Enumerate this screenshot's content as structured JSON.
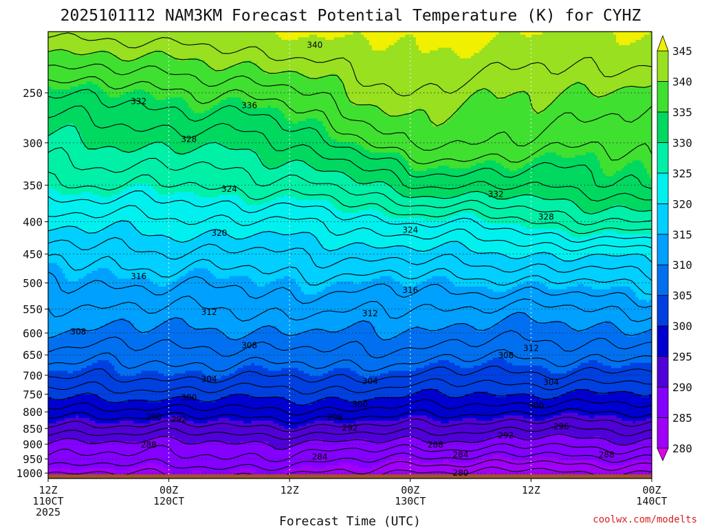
{
  "chart_data": {
    "type": "contour",
    "title": "2025101112 NAM3KM Forecast Potential Temperature (K) for CYHZ",
    "xlabel": "Forecast Time (UTC)",
    "ylabel": "",
    "x_range_hours": [
      0,
      60
    ],
    "y_range_hpa": [
      1020,
      200
    ],
    "x_ticks": [
      {
        "hour": 0,
        "line1": "12Z",
        "line2": "110CT",
        "line3": "2025"
      },
      {
        "hour": 12,
        "line1": "00Z",
        "line2": "120CT",
        "line3": ""
      },
      {
        "hour": 24,
        "line1": "12Z",
        "line2": "",
        "line3": ""
      },
      {
        "hour": 36,
        "line1": "00Z",
        "line2": "130CT",
        "line3": ""
      },
      {
        "hour": 48,
        "line1": "12Z",
        "line2": "",
        "line3": ""
      },
      {
        "hour": 60,
        "line1": "00Z",
        "line2": "140CT",
        "line3": ""
      }
    ],
    "y_ticks": [
      250,
      300,
      350,
      400,
      450,
      500,
      550,
      600,
      650,
      700,
      750,
      800,
      850,
      900,
      950,
      1000
    ],
    "ground_pressure_hpa": 1005,
    "isentrope_levels_k": [
      278,
      280,
      282,
      284,
      286,
      288,
      290,
      292,
      294,
      296,
      298,
      300,
      302,
      304,
      306,
      308,
      310,
      312,
      314,
      316,
      318,
      320,
      322,
      324,
      326,
      328,
      330,
      332,
      334,
      336,
      338,
      340,
      342
    ],
    "profile_hours": [
      0,
      6,
      12,
      18,
      24,
      30,
      36,
      42,
      48,
      54,
      60
    ],
    "profile_pressures_hpa": [
      1000,
      950,
      900,
      850,
      800,
      750,
      700,
      650,
      600,
      550,
      500,
      450,
      400,
      350,
      300,
      250,
      200
    ],
    "theta_k_by_hour": [
      [
        284,
        287,
        289,
        293,
        297,
        301,
        304.5,
        307,
        309.5,
        311.5,
        314,
        317,
        321,
        325.5,
        329.5,
        334,
        342
      ],
      [
        284,
        287,
        289,
        293,
        297,
        301,
        304.5,
        307,
        309.5,
        311.5,
        314,
        317,
        321,
        326,
        330,
        335,
        343
      ],
      [
        284.5,
        287.5,
        289.5,
        293,
        297,
        301,
        304.5,
        307,
        309.5,
        312,
        314.5,
        317.5,
        321.5,
        326,
        330.5,
        335.5,
        344
      ],
      [
        284.5,
        287.5,
        289.5,
        293.5,
        297.5,
        301,
        304.5,
        307,
        309.5,
        312,
        314.5,
        317.5,
        321.5,
        326.5,
        331,
        336,
        344
      ],
      [
        284.5,
        287.5,
        289.5,
        293.5,
        297.5,
        301,
        304.5,
        307.5,
        310,
        312.5,
        315,
        318,
        322,
        327,
        332,
        337.5,
        345
      ],
      [
        284,
        286.5,
        289.5,
        293.5,
        297.5,
        301,
        304.5,
        307.5,
        310,
        312.5,
        315,
        318.5,
        323,
        329,
        334.5,
        340,
        346
      ],
      [
        281,
        285,
        289,
        293,
        297,
        300.5,
        304,
        307,
        309.5,
        312,
        315,
        319,
        324,
        332,
        339,
        342,
        346
      ],
      [
        282,
        285.5,
        289,
        292.5,
        296.5,
        300,
        303.5,
        306.5,
        309,
        311.5,
        315,
        319.5,
        324.5,
        332,
        338,
        341,
        346
      ],
      [
        281,
        285,
        288.5,
        292,
        296,
        300,
        303.5,
        306.5,
        309,
        311.5,
        315.5,
        320,
        326,
        332.5,
        337,
        340,
        345
      ],
      [
        282,
        285.5,
        289,
        292.5,
        296.5,
        300,
        303.5,
        306.5,
        309,
        312,
        316,
        320.5,
        327.5,
        333,
        336.5,
        339.5,
        345
      ],
      [
        282,
        285.5,
        289,
        292.5,
        296.5,
        300,
        303.5,
        306.5,
        309.5,
        312.5,
        316.5,
        321,
        328.5,
        334,
        337,
        339.5,
        345
      ]
    ],
    "colorbar": {
      "ticks": [
        280,
        285,
        290,
        295,
        300,
        305,
        310,
        315,
        320,
        325,
        330,
        335,
        340,
        345
      ],
      "bands": [
        {
          "min": 275,
          "max": 280,
          "color": "#e000f0"
        },
        {
          "min": 280,
          "max": 285,
          "color": "#a000f8"
        },
        {
          "min": 285,
          "max": 290,
          "color": "#8400ff"
        },
        {
          "min": 290,
          "max": 295,
          "color": "#5000d8"
        },
        {
          "min": 295,
          "max": 300,
          "color": "#0000d0"
        },
        {
          "min": 300,
          "max": 305,
          "color": "#0040e0"
        },
        {
          "min": 305,
          "max": 310,
          "color": "#0070f0"
        },
        {
          "min": 310,
          "max": 315,
          "color": "#00a0ff"
        },
        {
          "min": 315,
          "max": 320,
          "color": "#00cfff"
        },
        {
          "min": 320,
          "max": 325,
          "color": "#00f0f0"
        },
        {
          "min": 325,
          "max": 330,
          "color": "#00f0a8"
        },
        {
          "min": 330,
          "max": 335,
          "color": "#00d860"
        },
        {
          "min": 335,
          "max": 340,
          "color": "#40e030"
        },
        {
          "min": 340,
          "max": 345,
          "color": "#98e020"
        },
        {
          "min": 345,
          "max": 350,
          "color": "#f0f000"
        }
      ]
    },
    "contour_labels": [
      {
        "text": "340",
        "hour": 26.5,
        "p": 210
      },
      {
        "text": "336",
        "hour": 20,
        "p": 262
      },
      {
        "text": "332",
        "hour": 9,
        "p": 258
      },
      {
        "text": "332",
        "hour": 44.5,
        "p": 362
      },
      {
        "text": "328",
        "hour": 14,
        "p": 296
      },
      {
        "text": "328",
        "hour": 49.5,
        "p": 393
      },
      {
        "text": "324",
        "hour": 18,
        "p": 355
      },
      {
        "text": "324",
        "hour": 36,
        "p": 412
      },
      {
        "text": "320",
        "hour": 17,
        "p": 417
      },
      {
        "text": "316",
        "hour": 9,
        "p": 488
      },
      {
        "text": "316",
        "hour": 36,
        "p": 513
      },
      {
        "text": "312",
        "hour": 16,
        "p": 556
      },
      {
        "text": "312",
        "hour": 32,
        "p": 559
      },
      {
        "text": "312",
        "hour": 48,
        "p": 634
      },
      {
        "text": "308",
        "hour": 3,
        "p": 597
      },
      {
        "text": "308",
        "hour": 20,
        "p": 628
      },
      {
        "text": "308",
        "hour": 45.5,
        "p": 651
      },
      {
        "text": "304",
        "hour": 16,
        "p": 710
      },
      {
        "text": "304",
        "hour": 32,
        "p": 715
      },
      {
        "text": "304",
        "hour": 50,
        "p": 718
      },
      {
        "text": "300",
        "hour": 14,
        "p": 760
      },
      {
        "text": "300",
        "hour": 31,
        "p": 778
      },
      {
        "text": "300",
        "hour": 48.5,
        "p": 782
      },
      {
        "text": "296",
        "hour": 10.5,
        "p": 815
      },
      {
        "text": "296",
        "hour": 28.5,
        "p": 816
      },
      {
        "text": "296",
        "hour": 51,
        "p": 844
      },
      {
        "text": "292",
        "hour": 13,
        "p": 822
      },
      {
        "text": "292",
        "hour": 30,
        "p": 848
      },
      {
        "text": "292",
        "hour": 45.5,
        "p": 872
      },
      {
        "text": "288",
        "hour": 10,
        "p": 902
      },
      {
        "text": "288",
        "hour": 38.5,
        "p": 902
      },
      {
        "text": "288",
        "hour": 55.5,
        "p": 935
      },
      {
        "text": "284",
        "hour": 27,
        "p": 942
      },
      {
        "text": "284",
        "hour": 41,
        "p": 935
      },
      {
        "text": "280",
        "hour": 41,
        "p": 1000
      }
    ]
  },
  "credit": "coolwx.com/modelts"
}
